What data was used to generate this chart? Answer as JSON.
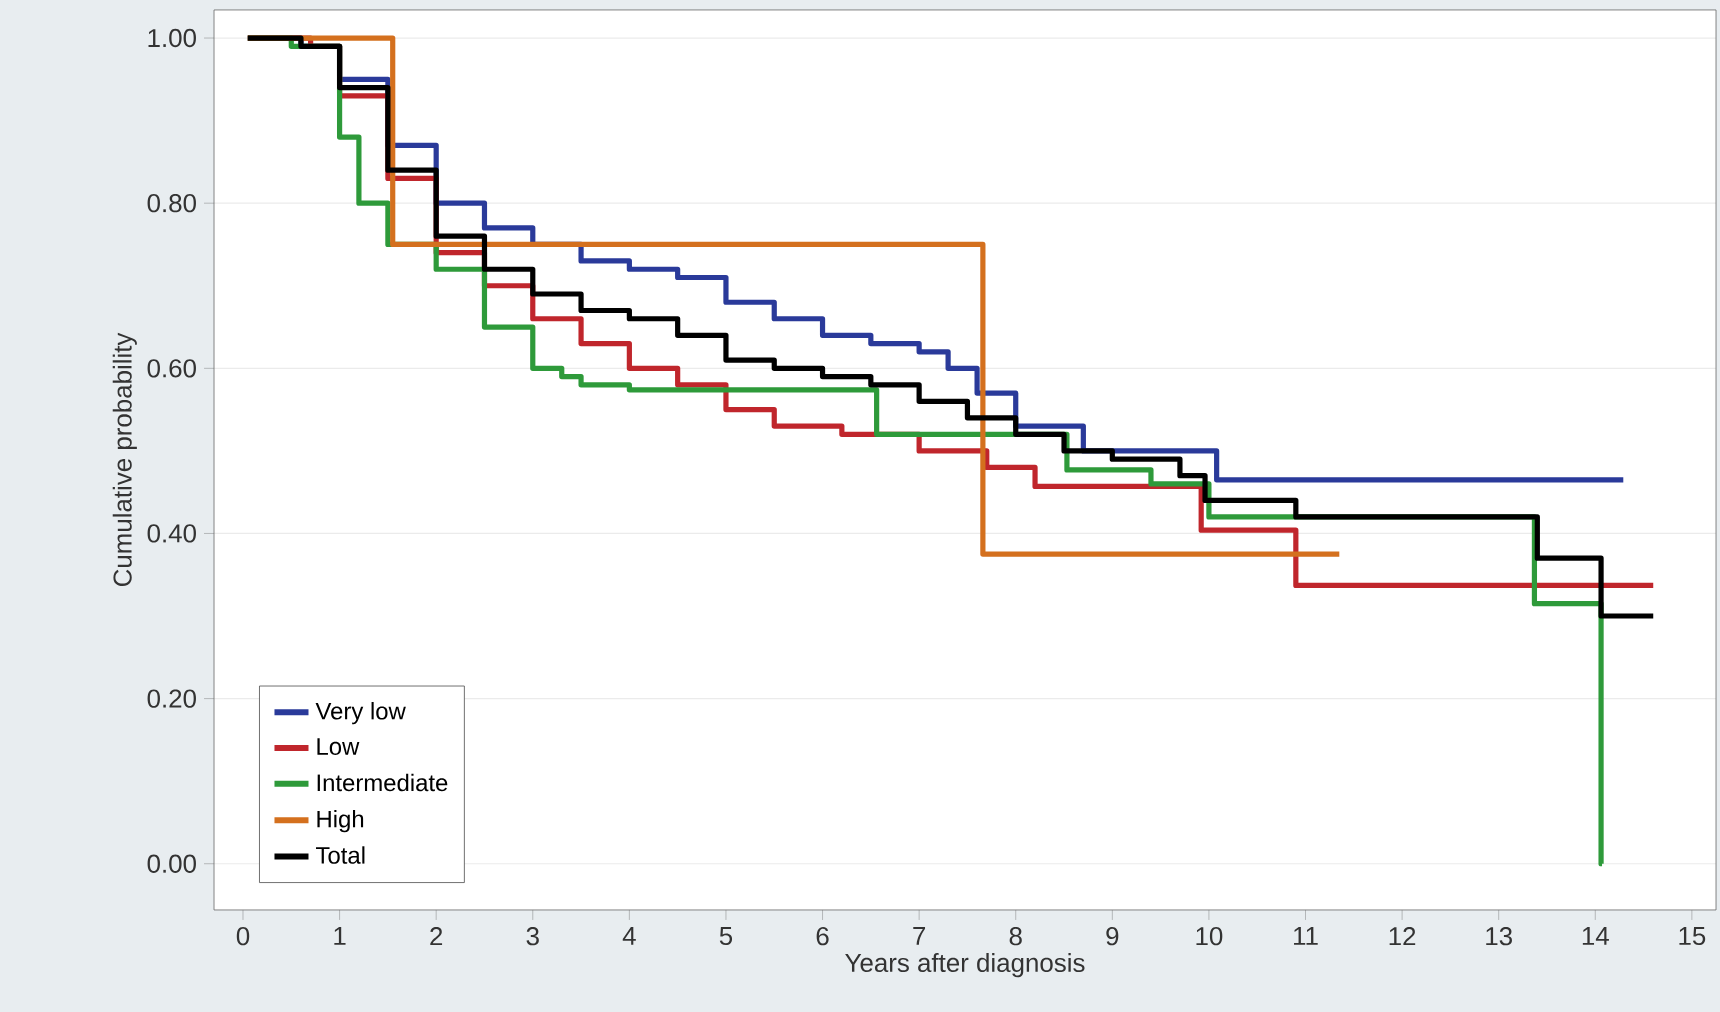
{
  "chart_data": {
    "type": "step",
    "xlabel": "Years after diagnosis",
    "ylabel": "Cumulative probability",
    "xlim": [
      -0.3,
      15.25
    ],
    "ylim": [
      -0.056,
      1.034
    ],
    "xticks": [
      0,
      1,
      2,
      3,
      4,
      5,
      6,
      7,
      8,
      9,
      10,
      11,
      12,
      13,
      14,
      15
    ],
    "yticks": [
      {
        "value": 0,
        "label": "0.00"
      },
      {
        "value": 0.2,
        "label": "0.20"
      },
      {
        "value": 0.4,
        "label": "0.40"
      },
      {
        "value": 0.6,
        "label": "0.60"
      },
      {
        "value": 0.8,
        "label": "0.80"
      },
      {
        "value": 1,
        "label": "1.00"
      }
    ],
    "grid": "y",
    "legend": "bottom left",
    "line_style": "solid",
    "series": [
      {
        "name": "Very low",
        "color": "#2a3a9a",
        "x": [
          0.05,
          0.6,
          1.0,
          1.5,
          2.0,
          2.5,
          3.0,
          3.5,
          4.0,
          4.5,
          5.0,
          5.5,
          6.0,
          6.5,
          7.0,
          7.3,
          7.6,
          8.0,
          8.7,
          10.08,
          14.29
        ],
        "values": [
          1.0,
          0.99,
          0.95,
          0.87,
          0.8,
          0.77,
          0.75,
          0.73,
          0.72,
          0.71,
          0.68,
          0.66,
          0.64,
          0.63,
          0.62,
          0.6,
          0.57,
          0.53,
          0.5,
          0.465,
          0.465
        ]
      },
      {
        "name": "Low",
        "color": "#c0262c",
        "x": [
          0.05,
          0.7,
          1.0,
          1.5,
          2.0,
          2.5,
          3.0,
          3.5,
          4.0,
          4.5,
          5.0,
          5.5,
          6.2,
          7.0,
          7.7,
          8.2,
          9.2,
          9.92,
          10.9,
          14.6
        ],
        "values": [
          1.0,
          0.99,
          0.93,
          0.83,
          0.74,
          0.7,
          0.66,
          0.63,
          0.6,
          0.58,
          0.55,
          0.53,
          0.52,
          0.5,
          0.48,
          0.457,
          0.457,
          0.404,
          0.337,
          0.337
        ]
      },
      {
        "name": "Intermediate",
        "color": "#2e9a3a",
        "x": [
          0.05,
          0.5,
          1.0,
          1.2,
          1.5,
          2.0,
          2.5,
          3.0,
          3.3,
          3.5,
          4.0,
          6.56,
          8.53,
          9.4,
          10.0,
          13.37,
          14.06,
          14.07
        ],
        "values": [
          1.0,
          0.99,
          0.88,
          0.8,
          0.75,
          0.72,
          0.65,
          0.6,
          0.59,
          0.58,
          0.574,
          0.52,
          0.477,
          0.46,
          0.42,
          0.315,
          0.0,
          0.0
        ]
      },
      {
        "name": "High",
        "color": "#d4701e",
        "x": [
          0.05,
          1.55,
          7.66,
          11.35
        ],
        "values": [
          1.0,
          0.75,
          0.375,
          0.375
        ]
      },
      {
        "name": "Total",
        "color": "#000000",
        "x": [
          0.05,
          0.6,
          1.0,
          1.5,
          2.0,
          2.5,
          3.0,
          3.5,
          4.0,
          4.5,
          5.0,
          5.5,
          6.0,
          6.5,
          7.0,
          7.5,
          8.0,
          8.5,
          9.0,
          9.7,
          9.96,
          10.9,
          13.4,
          14.06,
          14.6
        ],
        "values": [
          1.0,
          0.99,
          0.94,
          0.84,
          0.76,
          0.72,
          0.69,
          0.67,
          0.66,
          0.64,
          0.61,
          0.6,
          0.59,
          0.58,
          0.56,
          0.54,
          0.52,
          0.5,
          0.49,
          0.47,
          0.44,
          0.42,
          0.37,
          0.3,
          0.3
        ]
      }
    ]
  }
}
